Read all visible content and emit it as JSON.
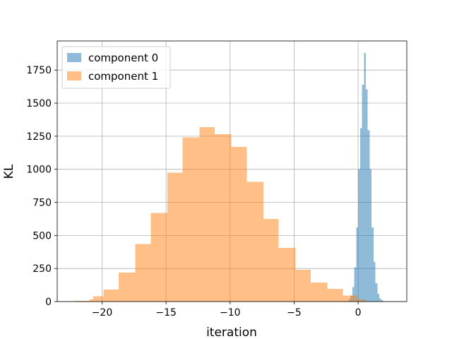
{
  "chart_data": {
    "type": "histogram",
    "title": "",
    "xlabel": "iteration",
    "ylabel": "KL",
    "xlim": [
      -23.5,
      3.8
    ],
    "ylim": [
      0,
      1970
    ],
    "xticks": [
      -20,
      -15,
      -10,
      -5,
      0
    ],
    "xtick_labels": [
      "−20",
      "−15",
      "−10",
      "−5",
      "0"
    ],
    "yticks": [
      0,
      250,
      500,
      750,
      1000,
      1250,
      1500,
      1750
    ],
    "ytick_labels": [
      "0",
      "250",
      "500",
      "750",
      "1000",
      "1250",
      "1500",
      "1750"
    ],
    "grid": true,
    "legend_position": "top-left",
    "series": [
      {
        "name": "component 0",
        "color": "#1f77b4",
        "opacity": 0.5,
        "bins": [
          {
            "x0": -0.75,
            "x1": -0.6,
            "count": 15
          },
          {
            "x0": -0.6,
            "x1": -0.45,
            "count": 45
          },
          {
            "x0": -0.45,
            "x1": -0.3,
            "count": 110
          },
          {
            "x0": -0.3,
            "x1": -0.15,
            "count": 260
          },
          {
            "x0": -0.15,
            "x1": 0.0,
            "count": 560
          },
          {
            "x0": 0.0,
            "x1": 0.15,
            "count": 1000
          },
          {
            "x0": 0.15,
            "x1": 0.3,
            "count": 1310
          },
          {
            "x0": 0.3,
            "x1": 0.45,
            "count": 1640
          },
          {
            "x0": 0.45,
            "x1": 0.6,
            "count": 1880
          },
          {
            "x0": 0.6,
            "x1": 0.75,
            "count": 1605
          },
          {
            "x0": 0.75,
            "x1": 0.9,
            "count": 1295
          },
          {
            "x0": 0.9,
            "x1": 1.05,
            "count": 1000
          },
          {
            "x0": 1.05,
            "x1": 1.2,
            "count": 560
          },
          {
            "x0": 1.2,
            "x1": 1.35,
            "count": 300
          },
          {
            "x0": 1.35,
            "x1": 1.5,
            "count": 140
          },
          {
            "x0": 1.5,
            "x1": 1.65,
            "count": 60
          },
          {
            "x0": 1.65,
            "x1": 1.8,
            "count": 25
          },
          {
            "x0": 1.8,
            "x1": 1.95,
            "count": 10
          }
        ]
      },
      {
        "name": "component 1",
        "color": "#ff7f0e",
        "opacity": 0.5,
        "bins": [
          {
            "x0": -22.2,
            "x1": -21.0,
            "count": 5
          },
          {
            "x0": -21.0,
            "x1": -20.7,
            "count": 15
          },
          {
            "x0": -20.7,
            "x1": -19.9,
            "count": 40
          },
          {
            "x0": -19.9,
            "x1": -18.7,
            "count": 90
          },
          {
            "x0": -18.7,
            "x1": -17.4,
            "count": 220
          },
          {
            "x0": -17.4,
            "x1": -16.2,
            "count": 435
          },
          {
            "x0": -16.2,
            "x1": -14.9,
            "count": 670
          },
          {
            "x0": -14.9,
            "x1": -13.7,
            "count": 975
          },
          {
            "x0": -13.7,
            "x1": -12.4,
            "count": 1240
          },
          {
            "x0": -12.4,
            "x1": -11.2,
            "count": 1320
          },
          {
            "x0": -11.2,
            "x1": -9.9,
            "count": 1265
          },
          {
            "x0": -9.9,
            "x1": -8.7,
            "count": 1170
          },
          {
            "x0": -8.7,
            "x1": -7.4,
            "count": 905
          },
          {
            "x0": -7.4,
            "x1": -6.2,
            "count": 625
          },
          {
            "x0": -6.2,
            "x1": -4.9,
            "count": 405
          },
          {
            "x0": -4.9,
            "x1": -3.7,
            "count": 240
          },
          {
            "x0": -3.7,
            "x1": -2.4,
            "count": 145
          },
          {
            "x0": -2.4,
            "x1": -1.2,
            "count": 95
          },
          {
            "x0": -1.2,
            "x1": -0.1,
            "count": 45
          },
          {
            "x0": -0.1,
            "x1": 0.6,
            "count": 15
          }
        ]
      }
    ]
  }
}
